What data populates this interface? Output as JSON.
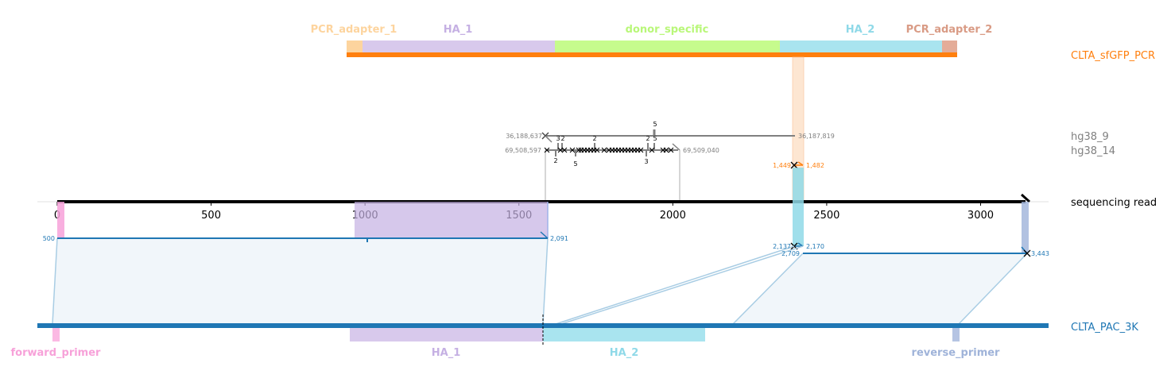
{
  "reference_names": {
    "top": "CLTA_sfGFP_PCR",
    "hg38_9": "hg38_9",
    "hg38_14": "hg38_14",
    "read": "sequencing read",
    "bottom": "CLTA_PAC_3K"
  },
  "colors": {
    "top_ref": "#ff7f0e",
    "gray": "#808080",
    "bottom_ref": "#1f77b4",
    "pcr_adapter_1": "#fdd49e",
    "ha_1": "#c5b0e3",
    "donor_specific": "#b9f779",
    "ha_2": "#8fd9e8",
    "pcr_adapter_2": "#d99b85",
    "forward_primer": "#f7a1d9",
    "reverse_primer": "#9fb3d9"
  },
  "top_features": [
    {
      "label": "PCR_adapter_1",
      "key": "pcr_adapter_1"
    },
    {
      "label": "HA_1",
      "key": "ha_1"
    },
    {
      "label": "donor_specific",
      "key": "donor_specific"
    },
    {
      "label": "HA_2",
      "key": "ha_2"
    },
    {
      "label": "PCR_adapter_2",
      "key": "pcr_adapter_2"
    }
  ],
  "bottom_features": [
    {
      "label": "forward_primer",
      "key": "forward_primer"
    },
    {
      "label": "HA_1",
      "key": "ha_1"
    },
    {
      "label": "HA_2",
      "key": "ha_2"
    },
    {
      "label": "reverse_primer",
      "key": "reverse_primer"
    }
  ],
  "read_axis": {
    "ticks": [
      0,
      500,
      1000,
      1500,
      2000,
      2500,
      3000
    ],
    "max": 3146
  },
  "alignment_labels": {
    "hg38_9_start": "36,188,637",
    "hg38_9_end": "36,187,819",
    "hg38_14_start": "69,508,597",
    "hg38_14_end": "69,509,040",
    "top_start": "1,449",
    "top_end": "1,482",
    "pac1_start": "500",
    "pac1_end": "2,091",
    "pac2a_start": "2,137",
    "pac2a_end": "2,170",
    "pac2b_start": "2,709",
    "pac2b_end": "3,443"
  },
  "indel_labels": {
    "hg38_9": [
      "3",
      "2",
      "2",
      "2",
      "5",
      "5"
    ],
    "hg38_14": [
      "2",
      "5",
      "3"
    ]
  }
}
